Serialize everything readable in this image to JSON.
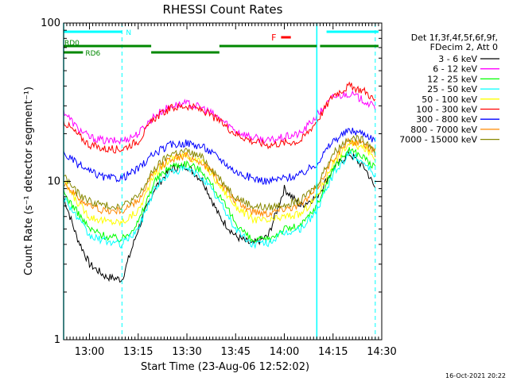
{
  "chart_data": {
    "type": "line",
    "title": "RHESSI Count Rates",
    "xlabel": "Start Time (23-Aug-06 12:52:02)",
    "ylabel": "Count Rate (s⁻¹ detector segment⁻¹)",
    "yscale": "log",
    "ylim": [
      1,
      100
    ],
    "xlim": [
      "12:52:02",
      "14:30:00"
    ],
    "x_ticks": [
      "13:00",
      "13:15",
      "13:30",
      "13:45",
      "14:00",
      "14:15",
      "14:30"
    ],
    "y_ticks": [
      "1",
      "10",
      "100"
    ],
    "legend_header": [
      "Det 1f,3f,4f,5f,6f,9f,",
      "FDecim 2, Att 0"
    ],
    "legend_placement": "right",
    "timestamp": "16-Oct-2021 20:22",
    "state_bars": [
      {
        "label": "N",
        "color": "#00ffff",
        "segments": [
          [
            "12:52:02",
            "13:10:00"
          ],
          [
            "14:13:00",
            "14:29:00"
          ]
        ]
      },
      {
        "label": "F",
        "color": "#ff0000",
        "segments": [
          [
            "13:59:00",
            "14:02:00"
          ]
        ]
      },
      {
        "label": "RD0",
        "color": "#008800",
        "segments": [
          [
            "12:52:02",
            "13:19:00"
          ],
          [
            "13:40:00",
            "14:10:00"
          ],
          [
            "14:11:00",
            "14:29:00"
          ]
        ]
      },
      {
        "label": "RD6",
        "color": "#008800",
        "segments": [
          [
            "12:52:02",
            "12:58:00"
          ],
          [
            "13:19:00",
            "13:40:00"
          ]
        ]
      }
    ],
    "vertical_lines": [
      {
        "time": "12:52:02",
        "style": "solid",
        "color": "#00ffff"
      },
      {
        "time": "13:10:00",
        "style": "dashed",
        "color": "#00ffff"
      },
      {
        "time": "14:10:00",
        "style": "solid",
        "color": "#00ffff"
      },
      {
        "time": "14:28:00",
        "style": "dashed",
        "color": "#00ffff"
      }
    ],
    "x": [
      "12:52",
      "12:56",
      "13:00",
      "13:05",
      "13:10",
      "13:15",
      "13:20",
      "13:25",
      "13:30",
      "13:35",
      "13:40",
      "13:45",
      "13:50",
      "13:55",
      "14:00",
      "14:05",
      "14:10",
      "14:15",
      "14:20",
      "14:25",
      "14:28"
    ],
    "series": [
      {
        "name": "3 - 6 keV",
        "color": "#000000",
        "values": [
          8,
          4.5,
          3,
          2.5,
          2.4,
          5,
          9,
          12,
          12.5,
          10,
          6,
          4.5,
          4,
          4.5,
          9,
          7,
          8,
          12,
          15,
          12,
          9
        ]
      },
      {
        "name": "6 - 12 keV",
        "color": "#ff00ff",
        "values": [
          28,
          22,
          19,
          18,
          18,
          20,
          26,
          30,
          31,
          29,
          25,
          21,
          19,
          18,
          19,
          20,
          26,
          34,
          36,
          32,
          29
        ]
      },
      {
        "name": "12 - 25 keV",
        "color": "#00ff00",
        "values": [
          8.5,
          6.5,
          5,
          4.5,
          4.3,
          5.5,
          10,
          12.5,
          13,
          11.5,
          8,
          5.5,
          4.2,
          4.3,
          5,
          5.2,
          7,
          12,
          16,
          14,
          12
        ]
      },
      {
        "name": "25 - 50 keV",
        "color": "#00ffff",
        "values": [
          8,
          6,
          4.5,
          4.2,
          4,
          5,
          9,
          11.5,
          12,
          10.5,
          7.5,
          5,
          4,
          4.1,
          4.7,
          5,
          6.5,
          11,
          15,
          13,
          11
        ]
      },
      {
        "name": "50 - 100 keV",
        "color": "#ffff00",
        "values": [
          10,
          7.5,
          6,
          5.6,
          5.5,
          6.5,
          11,
          14,
          14.5,
          13,
          9.5,
          7,
          5.8,
          5.6,
          6,
          6.2,
          8,
          13,
          17.5,
          16,
          14
        ]
      },
      {
        "name": "100 - 300 keV",
        "color": "#ff0000",
        "values": [
          24,
          20,
          17,
          16,
          16,
          18,
          25,
          29,
          30,
          28,
          24,
          20,
          18,
          17,
          17.5,
          18,
          24,
          35,
          40,
          37,
          32
        ]
      },
      {
        "name": "300 - 800 keV",
        "color": "#0000ff",
        "values": [
          15,
          13,
          11.5,
          10.5,
          10.5,
          12,
          15,
          17,
          17.5,
          16.5,
          14,
          11.5,
          10.5,
          10,
          10.5,
          11,
          13,
          18,
          21,
          20,
          18
        ]
      },
      {
        "name": "800 - 7000 keV",
        "color": "#ff8800",
        "values": [
          10,
          8,
          7,
          6.5,
          6.5,
          7.5,
          11.5,
          14,
          14.5,
          13,
          10,
          7.5,
          6.5,
          6.3,
          6.8,
          7,
          9,
          14,
          18,
          17,
          15
        ]
      },
      {
        "name": "7000 - 15000 keV",
        "color": "#888800",
        "values": [
          11,
          8.5,
          7.5,
          7,
          7,
          8,
          12,
          15,
          15.5,
          14,
          10.5,
          8,
          7,
          6.8,
          7.2,
          7.5,
          9.5,
          15,
          19,
          18,
          16
        ]
      }
    ]
  }
}
